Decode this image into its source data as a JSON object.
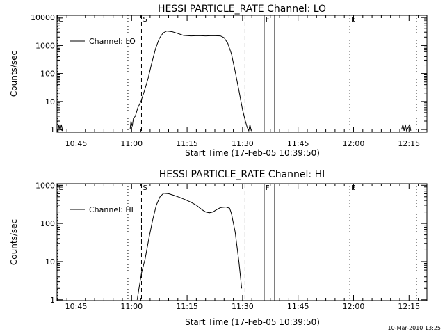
{
  "footer_timestamp": "10-Mar-2010 13:25",
  "chart_data": [
    {
      "type": "line",
      "title": "HESSI PARTICLE_RATE Channel: LO",
      "xlabel": "Start Time (17-Feb-05 10:39:50)",
      "ylabel": "Counts/sec",
      "yscale": "log",
      "ylim": [
        0.8,
        12000
      ],
      "xlim": [
        "10:39:50",
        "12:19:50"
      ],
      "grid": false,
      "legend": "top-left",
      "x_ticks": [
        "10:45",
        "11:00",
        "11:15",
        "11:30",
        "11:45",
        "12:00",
        "12:15"
      ],
      "y_ticks": [
        "1",
        "10",
        "100",
        "1000",
        "10000"
      ],
      "series": [
        {
          "name": "Channel: LO",
          "points": [
            [
              "10:39:50",
              1
            ],
            [
              "10:40:10",
              0.9
            ],
            [
              "10:40:20",
              1.5
            ],
            [
              "10:40:40",
              0.9
            ],
            [
              "10:41:00",
              1.5
            ],
            [
              "10:41:20",
              0.9
            ],
            [
              "10:40:50",
              1
            ],
            [
              "10:59:35",
              1
            ],
            [
              "10:59:50",
              2
            ],
            [
              "11:00:10",
              1.3
            ],
            [
              "11:00:30",
              2.5
            ],
            [
              "11:01:00",
              3
            ],
            [
              "11:01:40",
              6
            ],
            [
              "11:02:30",
              10
            ],
            [
              "11:03:30",
              25
            ],
            [
              "11:04:30",
              70
            ],
            [
              "11:05:30",
              250
            ],
            [
              "11:06:30",
              800
            ],
            [
              "11:07:30",
              1800
            ],
            [
              "11:08:30",
              2800
            ],
            [
              "11:09:30",
              3300
            ],
            [
              "11:11:00",
              3100
            ],
            [
              "11:12:30",
              2700
            ],
            [
              "11:14:00",
              2300
            ],
            [
              "11:16:00",
              2200
            ],
            [
              "11:18:00",
              2250
            ],
            [
              "11:20:00",
              2200
            ],
            [
              "11:22:00",
              2250
            ],
            [
              "11:24:00",
              2200
            ],
            [
              "11:25:00",
              1900
            ],
            [
              "11:26:00",
              1200
            ],
            [
              "11:27:00",
              500
            ],
            [
              "11:28:00",
              120
            ],
            [
              "11:29:00",
              25
            ],
            [
              "11:30:00",
              5
            ],
            [
              "11:30:45",
              2
            ],
            [
              "11:31:15",
              1.2
            ],
            [
              "11:31:40",
              0.9
            ],
            [
              "11:32:00",
              1.5
            ],
            [
              "11:32:20",
              0.9
            ],
            [
              "12:13:00",
              1
            ],
            [
              "12:13:20",
              1.5
            ],
            [
              "12:13:40",
              0.9
            ],
            [
              "12:14:00",
              1.5
            ],
            [
              "12:14:20",
              0.9
            ],
            [
              "12:15:10",
              1.5
            ],
            [
              "12:15:30",
              0.9
            ]
          ]
        }
      ],
      "markers": [
        {
          "label": "E",
          "time": "10:39:55",
          "style": "dotted"
        },
        {
          "label": "",
          "time": "10:59:00",
          "style": "dotted"
        },
        {
          "label": "S",
          "time": "11:02:40",
          "style": "dashed"
        },
        {
          "label": "",
          "time": "11:30:40",
          "style": "dashed"
        },
        {
          "label": "F",
          "time": "11:35:50",
          "style": "solid"
        },
        {
          "label": "",
          "time": "11:38:40",
          "style": "solid"
        },
        {
          "label": "E",
          "time": "11:59:00",
          "style": "dotted"
        },
        {
          "label": "",
          "time": "12:17:00",
          "style": "dotted"
        }
      ]
    },
    {
      "type": "line",
      "title": "HESSI PARTICLE_RATE Channel: HI",
      "xlabel": "Start Time (17-Feb-05 10:39:50)",
      "ylabel": "Counts/sec",
      "yscale": "log",
      "ylim": [
        0.95,
        1100
      ],
      "xlim": [
        "10:39:50",
        "12:19:50"
      ],
      "grid": false,
      "legend": "top-left",
      "x_ticks": [
        "10:45",
        "11:00",
        "11:15",
        "11:30",
        "11:45",
        "12:00",
        "12:15"
      ],
      "y_ticks": [
        "1",
        "10",
        "100",
        "1000"
      ],
      "series": [
        {
          "name": "Channel: HI",
          "points": [
            [
              "11:01:30",
              1
            ],
            [
              "11:02:00",
              2
            ],
            [
              "11:02:40",
              5
            ],
            [
              "11:03:40",
              12
            ],
            [
              "11:04:40",
              40
            ],
            [
              "11:05:40",
              120
            ],
            [
              "11:06:40",
              300
            ],
            [
              "11:07:40",
              500
            ],
            [
              "11:08:40",
              620
            ],
            [
              "11:10:00",
              600
            ],
            [
              "11:11:30",
              540
            ],
            [
              "11:13:00",
              480
            ],
            [
              "11:14:30",
              420
            ],
            [
              "11:16:00",
              360
            ],
            [
              "11:17:30",
              300
            ],
            [
              "11:19:00",
              230
            ],
            [
              "11:20:00",
              200
            ],
            [
              "11:21:00",
              190
            ],
            [
              "11:22:00",
              200
            ],
            [
              "11:23:00",
              230
            ],
            [
              "11:24:00",
              260
            ],
            [
              "11:25:30",
              270
            ],
            [
              "11:26:30",
              250
            ],
            [
              "11:27:00",
              180
            ],
            [
              "11:28:00",
              60
            ],
            [
              "11:29:00",
              10
            ],
            [
              "11:29:45",
              2
            ]
          ]
        }
      ],
      "markers": [
        {
          "label": "E",
          "time": "10:39:55",
          "style": "dotted"
        },
        {
          "label": "",
          "time": "10:59:00",
          "style": "dotted"
        },
        {
          "label": "S",
          "time": "11:02:40",
          "style": "dashed"
        },
        {
          "label": "",
          "time": "11:30:40",
          "style": "dashed"
        },
        {
          "label": "F",
          "time": "11:35:50",
          "style": "solid"
        },
        {
          "label": "",
          "time": "11:38:40",
          "style": "solid"
        },
        {
          "label": "E",
          "time": "11:59:00",
          "style": "dotted"
        },
        {
          "label": "",
          "time": "12:17:00",
          "style": "dotted"
        }
      ]
    }
  ]
}
